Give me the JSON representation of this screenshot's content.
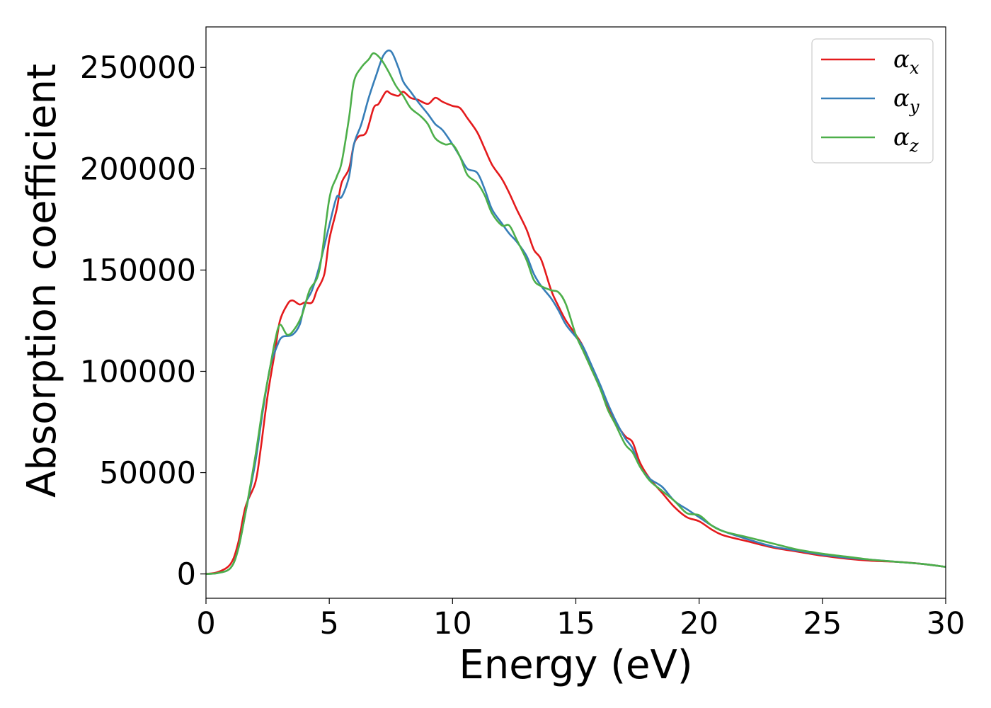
{
  "chart_data": {
    "type": "line",
    "title": "",
    "xlabel": "Energy (eV)",
    "ylabel": "Absorption coefficient",
    "xlim": [
      0,
      30
    ],
    "ylim": [
      -12000,
      270000
    ],
    "xticks": [
      0,
      5,
      10,
      15,
      20,
      25,
      30
    ],
    "xtick_labels": [
      "0",
      "5",
      "10",
      "15",
      "20",
      "25",
      "30"
    ],
    "yticks": [
      0,
      50000,
      100000,
      150000,
      200000,
      250000
    ],
    "ytick_labels": [
      "0",
      "50000",
      "100000",
      "150000",
      "200000",
      "250000"
    ],
    "grid": false,
    "legend_position": "top-right",
    "series": [
      {
        "name": "α_x",
        "legend_symbol": "α",
        "legend_subscript": "x",
        "color": "#e41a1c",
        "points": [
          [
            0,
            0
          ],
          [
            0.5,
            1000
          ],
          [
            1,
            5000
          ],
          [
            1.3,
            15000
          ],
          [
            1.6,
            33000
          ],
          [
            2,
            45000
          ],
          [
            2.2,
            60000
          ],
          [
            2.5,
            88000
          ],
          [
            2.8,
            110000
          ],
          [
            3,
            125000
          ],
          [
            3.3,
            133000
          ],
          [
            3.5,
            135000
          ],
          [
            3.8,
            133000
          ],
          [
            4,
            134000
          ],
          [
            4.3,
            134000
          ],
          [
            4.5,
            140000
          ],
          [
            4.8,
            148000
          ],
          [
            5,
            165000
          ],
          [
            5.3,
            180000
          ],
          [
            5.5,
            193000
          ],
          [
            5.8,
            200000
          ],
          [
            6,
            212000
          ],
          [
            6.2,
            216000
          ],
          [
            6.5,
            218000
          ],
          [
            6.8,
            230000
          ],
          [
            7,
            232000
          ],
          [
            7.3,
            238000
          ],
          [
            7.5,
            237000
          ],
          [
            7.8,
            236000
          ],
          [
            8,
            238000
          ],
          [
            8.3,
            235000
          ],
          [
            8.6,
            234000
          ],
          [
            9,
            232000
          ],
          [
            9.3,
            235000
          ],
          [
            9.6,
            233000
          ],
          [
            10,
            231000
          ],
          [
            10.3,
            230000
          ],
          [
            10.6,
            225000
          ],
          [
            11,
            218000
          ],
          [
            11.3,
            210000
          ],
          [
            11.6,
            202000
          ],
          [
            12,
            195000
          ],
          [
            12.3,
            188000
          ],
          [
            12.6,
            180000
          ],
          [
            13,
            170000
          ],
          [
            13.3,
            160000
          ],
          [
            13.6,
            155000
          ],
          [
            14,
            140000
          ],
          [
            14.3,
            132000
          ],
          [
            14.6,
            125000
          ],
          [
            15,
            118000
          ],
          [
            15.3,
            112000
          ],
          [
            15.6,
            102000
          ],
          [
            16,
            92000
          ],
          [
            16.3,
            82000
          ],
          [
            16.6,
            75000
          ],
          [
            17,
            68000
          ],
          [
            17.3,
            65000
          ],
          [
            17.6,
            55000
          ],
          [
            18,
            47000
          ],
          [
            18.5,
            40000
          ],
          [
            19,
            33000
          ],
          [
            19.5,
            28000
          ],
          [
            20,
            26000
          ],
          [
            20.5,
            22000
          ],
          [
            21,
            19000
          ],
          [
            22,
            16000
          ],
          [
            23,
            13000
          ],
          [
            24,
            11000
          ],
          [
            25,
            9000
          ],
          [
            26,
            7500
          ],
          [
            27,
            6500
          ],
          [
            28,
            6000
          ],
          [
            29,
            5000
          ],
          [
            30,
            3500
          ]
        ]
      },
      {
        "name": "α_y",
        "legend_symbol": "α",
        "legend_subscript": "y",
        "color": "#377eb8",
        "points": [
          [
            0,
            0
          ],
          [
            0.5,
            500
          ],
          [
            1,
            3000
          ],
          [
            1.3,
            12000
          ],
          [
            1.6,
            30000
          ],
          [
            2,
            55000
          ],
          [
            2.3,
            80000
          ],
          [
            2.6,
            102000
          ],
          [
            2.9,
            113000
          ],
          [
            3.1,
            117000
          ],
          [
            3.5,
            118000
          ],
          [
            3.8,
            123000
          ],
          [
            4,
            133000
          ],
          [
            4.3,
            140000
          ],
          [
            4.6,
            152000
          ],
          [
            5,
            172000
          ],
          [
            5.3,
            186000
          ],
          [
            5.5,
            186000
          ],
          [
            5.8,
            196000
          ],
          [
            6,
            212000
          ],
          [
            6.3,
            222000
          ],
          [
            6.6,
            235000
          ],
          [
            6.9,
            246000
          ],
          [
            7.2,
            256000
          ],
          [
            7.5,
            258000
          ],
          [
            7.8,
            250000
          ],
          [
            8,
            243000
          ],
          [
            8.3,
            238000
          ],
          [
            8.6,
            233000
          ],
          [
            9,
            227000
          ],
          [
            9.3,
            222000
          ],
          [
            9.6,
            219000
          ],
          [
            10,
            212000
          ],
          [
            10.3,
            206000
          ],
          [
            10.6,
            200000
          ],
          [
            11,
            198000
          ],
          [
            11.3,
            190000
          ],
          [
            11.6,
            180000
          ],
          [
            12,
            173000
          ],
          [
            12.3,
            168000
          ],
          [
            12.6,
            164000
          ],
          [
            13,
            157000
          ],
          [
            13.3,
            148000
          ],
          [
            13.6,
            142000
          ],
          [
            14,
            136000
          ],
          [
            14.3,
            130000
          ],
          [
            14.6,
            123000
          ],
          [
            15,
            117000
          ],
          [
            15.3,
            112000
          ],
          [
            15.6,
            104000
          ],
          [
            16,
            93000
          ],
          [
            16.3,
            84000
          ],
          [
            16.6,
            76000
          ],
          [
            17,
            67000
          ],
          [
            17.3,
            62000
          ],
          [
            17.6,
            53000
          ],
          [
            18,
            47000
          ],
          [
            18.5,
            43000
          ],
          [
            19,
            36000
          ],
          [
            19.5,
            32000
          ],
          [
            20,
            28000
          ],
          [
            20.5,
            24000
          ],
          [
            21,
            21000
          ],
          [
            22,
            17000
          ],
          [
            23,
            13500
          ],
          [
            24,
            11500
          ],
          [
            25,
            9500
          ],
          [
            26,
            8000
          ],
          [
            27,
            7000
          ],
          [
            28,
            6000
          ],
          [
            29,
            5000
          ],
          [
            30,
            3500
          ]
        ]
      },
      {
        "name": "α_z",
        "legend_symbol": "α",
        "legend_subscript": "z",
        "color": "#4daf4a",
        "points": [
          [
            0,
            0
          ],
          [
            0.5,
            500
          ],
          [
            1,
            3000
          ],
          [
            1.3,
            12000
          ],
          [
            1.6,
            30000
          ],
          [
            2,
            58000
          ],
          [
            2.3,
            82000
          ],
          [
            2.6,
            102000
          ],
          [
            2.8,
            115000
          ],
          [
            3,
            123000
          ],
          [
            3.3,
            118000
          ],
          [
            3.6,
            121000
          ],
          [
            3.9,
            128000
          ],
          [
            4.2,
            140000
          ],
          [
            4.6,
            150000
          ],
          [
            5,
            185000
          ],
          [
            5.3,
            196000
          ],
          [
            5.5,
            203000
          ],
          [
            5.8,
            225000
          ],
          [
            6,
            243000
          ],
          [
            6.3,
            250000
          ],
          [
            6.6,
            254000
          ],
          [
            6.8,
            257000
          ],
          [
            7.1,
            254000
          ],
          [
            7.4,
            248000
          ],
          [
            7.7,
            241000
          ],
          [
            8,
            236000
          ],
          [
            8.3,
            230000
          ],
          [
            8.7,
            226000
          ],
          [
            9,
            222000
          ],
          [
            9.3,
            215000
          ],
          [
            9.7,
            212000
          ],
          [
            10,
            212000
          ],
          [
            10.3,
            206000
          ],
          [
            10.6,
            197000
          ],
          [
            11,
            193000
          ],
          [
            11.3,
            187000
          ],
          [
            11.6,
            178000
          ],
          [
            12,
            172000
          ],
          [
            12.3,
            172000
          ],
          [
            12.6,
            165000
          ],
          [
            13,
            155000
          ],
          [
            13.3,
            145000
          ],
          [
            13.6,
            142000
          ],
          [
            14,
            140000
          ],
          [
            14.3,
            139000
          ],
          [
            14.6,
            133000
          ],
          [
            15,
            118000
          ],
          [
            15.3,
            110000
          ],
          [
            15.6,
            102000
          ],
          [
            16,
            91000
          ],
          [
            16.3,
            81000
          ],
          [
            16.6,
            74000
          ],
          [
            17,
            64000
          ],
          [
            17.3,
            60000
          ],
          [
            17.6,
            53000
          ],
          [
            18,
            46000
          ],
          [
            18.5,
            41000
          ],
          [
            19,
            36000
          ],
          [
            19.5,
            30000
          ],
          [
            20,
            29000
          ],
          [
            20.5,
            24000
          ],
          [
            21,
            21000
          ],
          [
            22,
            18000
          ],
          [
            23,
            15000
          ],
          [
            24,
            12000
          ],
          [
            25,
            10000
          ],
          [
            26,
            8500
          ],
          [
            27,
            7000
          ],
          [
            28,
            6000
          ],
          [
            29,
            5000
          ],
          [
            30,
            3500
          ]
        ]
      }
    ]
  }
}
